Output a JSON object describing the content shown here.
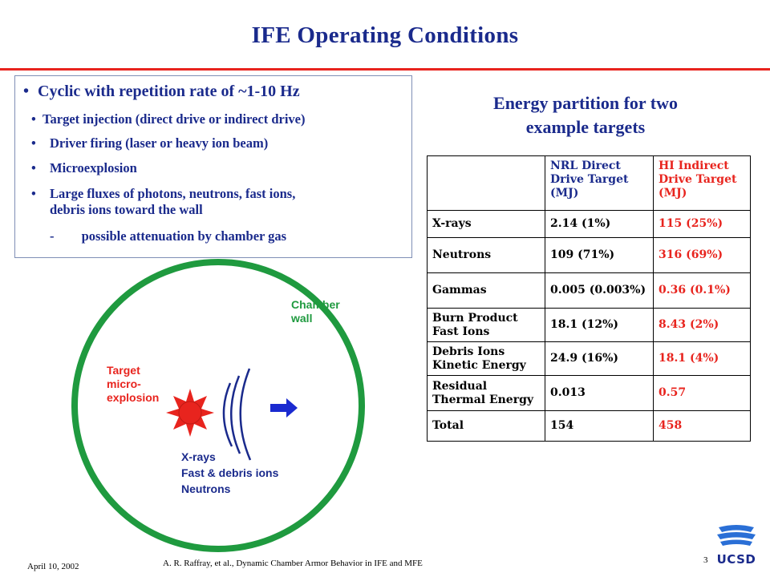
{
  "slide": {
    "title": "IFE Operating Conditions",
    "date": "April 10, 2002",
    "citation": "A. R. Raffray, et al., Dynamic Chamber Armor Behavior in IFE and MFE",
    "page_number": "3",
    "logo_text": "UCSD"
  },
  "bullets": {
    "main": "Cyclic with repetition rate of ~1-10 Hz",
    "sub": [
      "Target injection (direct drive or indirect drive)",
      "Driver firing (laser or heavy ion beam)",
      "Microexplosion",
      "Large fluxes of photons, neutrons, fast ions,",
      "debris ions toward the wall"
    ],
    "dash_marker": "-",
    "dash_item": "possible attenuation by chamber gas",
    "bullet_symbol": "•"
  },
  "energy": {
    "heading_line1": "Energy partition for two",
    "heading_line2": "example targets",
    "columns": [
      [
        "",
        "",
        ""
      ],
      [
        "NRL Direct",
        "Drive Target",
        "(MJ)"
      ],
      [
        "HI Indirect",
        "Drive Target",
        "(MJ)"
      ]
    ],
    "rows": [
      {
        "label": [
          "X-rays",
          ""
        ],
        "nrl": "2.14 (1%)",
        "hi": "115 (25%)"
      },
      {
        "label": [
          "Neutrons",
          ""
        ],
        "nrl": "109 (71%)",
        "hi": "316 (69%)"
      },
      {
        "label": [
          "Gammas",
          ""
        ],
        "nrl": "0.005 (0.003%)",
        "hi": "0.36 (0.1%)"
      },
      {
        "label": [
          "Burn Product",
          "Fast Ions"
        ],
        "nrl": "18.1 (12%)",
        "hi": "8.43 (2%)"
      },
      {
        "label": [
          "Debris Ions",
          "Kinetic Energy"
        ],
        "nrl": "24.9 (16%)",
        "hi": "18.1 (4%)"
      },
      {
        "label": [
          "Residual",
          "Thermal Energy"
        ],
        "nrl": "0.013",
        "hi": "0.57"
      },
      {
        "label": [
          "Total",
          ""
        ],
        "nrl": "154",
        "hi": "458"
      }
    ]
  },
  "diagram": {
    "chamber_label": [
      "Chamber",
      "wall"
    ],
    "target_label": [
      "Target",
      "micro-",
      "explosion"
    ],
    "emissions": [
      "X-rays",
      "Fast & debris ions",
      "Neutrons"
    ],
    "colors": {
      "chamber_wall": "#1f9a3f",
      "explosion": "#e8241e",
      "waves": "#1a2a8c",
      "arrow": "#1a2ad0"
    }
  }
}
